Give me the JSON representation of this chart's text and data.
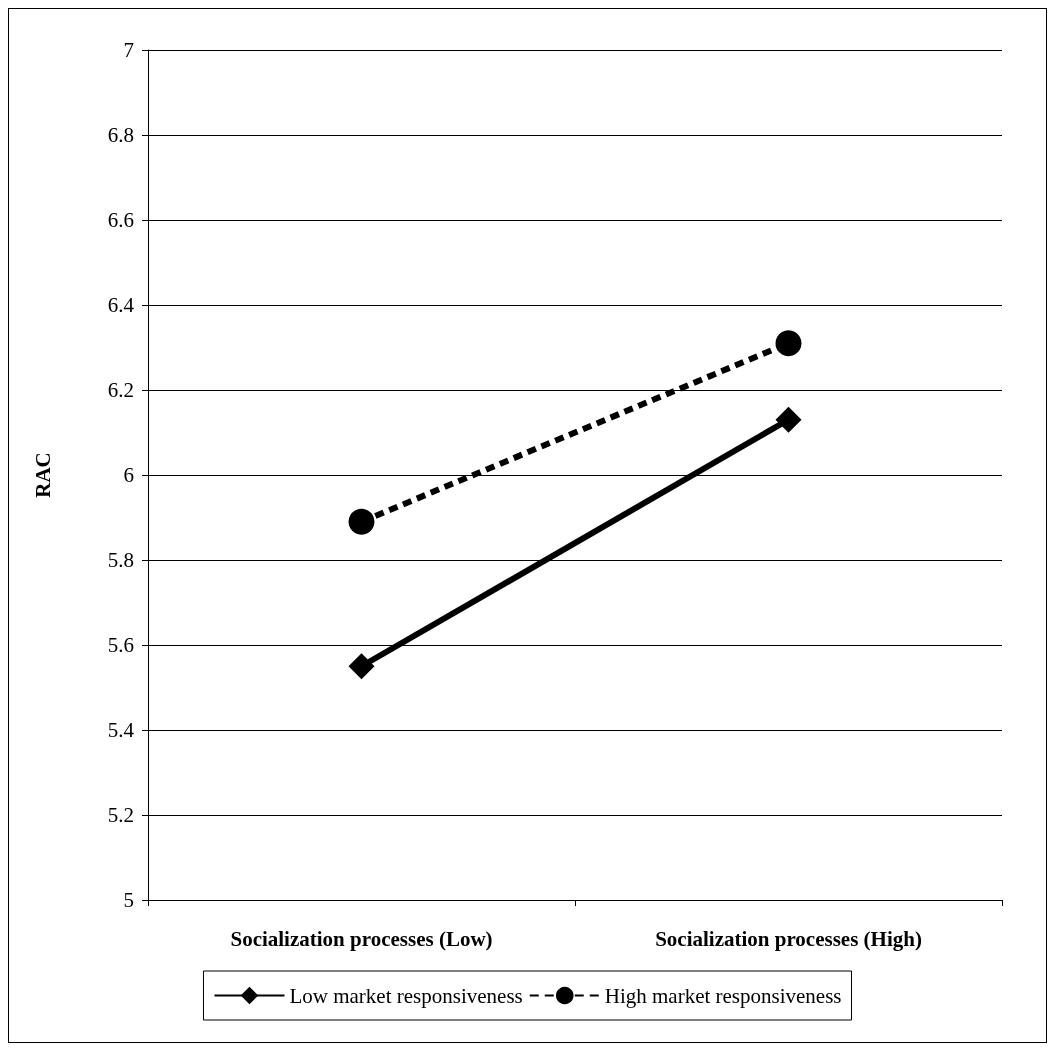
{
  "chart_data": {
    "type": "line",
    "ylabel": "RAC",
    "categories": [
      "Socialization processes (Low)",
      "Socialization processes (High)"
    ],
    "series": [
      {
        "name": "Low market responsiveness",
        "color": "#000000",
        "values": [
          5.55,
          6.13
        ],
        "marker": "diamond",
        "line_style": "solid"
      },
      {
        "name": "High market responsiveness",
        "color": "#000000",
        "values": [
          5.89,
          6.31
        ],
        "marker": "circle",
        "line_style": "dashed"
      }
    ],
    "ylim": [
      5,
      7
    ],
    "yticks": [
      5,
      5.2,
      5.4,
      5.6,
      5.8,
      6,
      6.2,
      6.4,
      6.6,
      6.8,
      7
    ],
    "grid": "y",
    "legend": "bottom"
  }
}
